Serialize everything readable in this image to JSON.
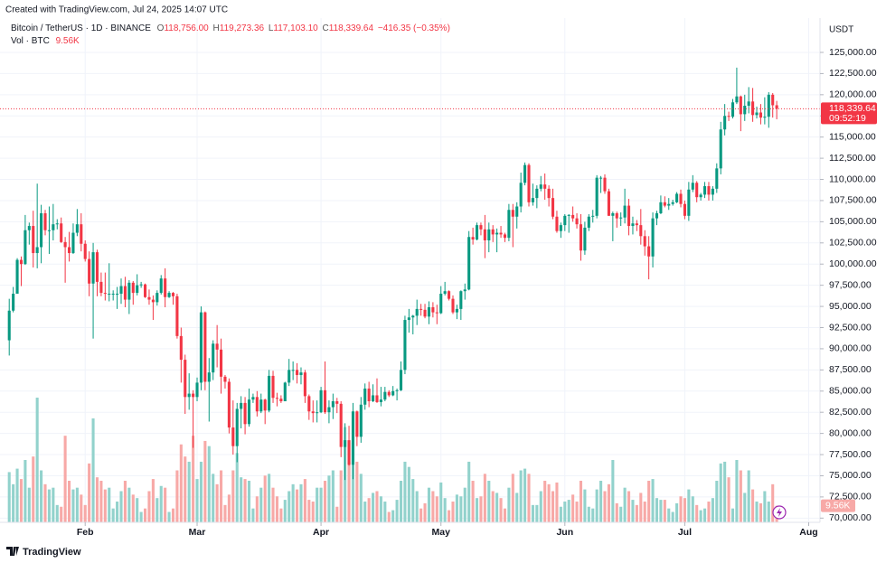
{
  "chart_data": {
    "type": "candlestick",
    "created_note": "Created with TradingView.com, Jul 24, 2025 14:07 UTC",
    "title": "Bitcoin / TetherUS · 1D · BINANCE",
    "ohlc_labels": [
      "O",
      "H",
      "L",
      "C"
    ],
    "ohlc_value_labels": [
      "118,756.00",
      "119,273.36",
      "117,103.10",
      "118,339.64"
    ],
    "change_label": "−416.35 (−0.35%)",
    "volume_title": "Vol · BTC",
    "last_volume_label": "9.56K",
    "currency": "USDT",
    "last_price_label": "118,339.64",
    "countdown": "09:52:19",
    "brand": "TradingView",
    "up_color": "#089981",
    "down_color": "#f23645",
    "up_volume_color": "#92d2cc",
    "down_volume_color": "#f7a9a7",
    "grid": true,
    "xlim": [
      -0.5,
      202.6
    ],
    "xticks": [
      {
        "value": 19,
        "label": "Feb"
      },
      {
        "value": 47,
        "label": "Mar"
      },
      {
        "value": 78,
        "label": "Apr"
      },
      {
        "value": 108,
        "label": "May"
      },
      {
        "value": 139,
        "label": "Jun"
      },
      {
        "value": 169,
        "label": "Jul"
      },
      {
        "value": 200,
        "label": "Aug"
      }
    ],
    "ylim": [
      69500,
      128200
    ],
    "yticks": [
      {
        "value": 70000,
        "label": "70,000.00"
      },
      {
        "value": 72500,
        "label": "72,500.00"
      },
      {
        "value": 75000,
        "label": "75,000.00"
      },
      {
        "value": 77500,
        "label": "77,500.00"
      },
      {
        "value": 80000,
        "label": "80,000.00"
      },
      {
        "value": 82500,
        "label": "82,500.00"
      },
      {
        "value": 85000,
        "label": "85,000.00"
      },
      {
        "value": 87500,
        "label": "87,500.00"
      },
      {
        "value": 90000,
        "label": "90,000.00"
      },
      {
        "value": 92500,
        "label": "92,500.00"
      },
      {
        "value": 95000,
        "label": "95,000.00"
      },
      {
        "value": 97500,
        "label": "97,500.00"
      },
      {
        "value": 100000,
        "label": "100,000.00"
      },
      {
        "value": 102500,
        "label": "102,500.00"
      },
      {
        "value": 105000,
        "label": "105,000.00"
      },
      {
        "value": 107500,
        "label": "107,500.00"
      },
      {
        "value": 110000,
        "label": "110,000.00"
      },
      {
        "value": 112500,
        "label": "112,500.00"
      },
      {
        "value": 115000,
        "label": "115,000.00"
      },
      {
        "value": 117500,
        "label": "117,500.00"
      },
      {
        "value": 120000,
        "label": "120,000.00"
      },
      {
        "value": 122500,
        "label": "122,500.00"
      },
      {
        "value": 125000,
        "label": "125,000.00"
      }
    ],
    "volume_ylim": [
      0,
      287
    ],
    "candles": [
      [
        91000,
        95900,
        89200,
        94500
      ],
      [
        94500,
        97300,
        94300,
        96500
      ],
      [
        96500,
        100700,
        96500,
        100500
      ],
      [
        100500,
        100900,
        97400,
        100000
      ],
      [
        100000,
        105800,
        99900,
        104000
      ],
      [
        104000,
        104900,
        102300,
        104500
      ],
      [
        104500,
        106300,
        99600,
        101300
      ],
      [
        101300,
        109500,
        99500,
        102000
      ],
      [
        102000,
        107000,
        100100,
        106000
      ],
      [
        106000,
        106400,
        103400,
        104000
      ],
      [
        104000,
        106800,
        101200,
        104000
      ],
      [
        104000,
        107100,
        102800,
        104700
      ],
      [
        104700,
        105300,
        104100,
        104800
      ],
      [
        104800,
        105500,
        102500,
        102600
      ],
      [
        102600,
        103200,
        97800,
        102000
      ],
      [
        102000,
        103800,
        100300,
        101300
      ],
      [
        101300,
        104800,
        101200,
        103700
      ],
      [
        103700,
        106500,
        103300,
        104700
      ],
      [
        104700,
        106000,
        101500,
        102400
      ],
      [
        102400,
        102800,
        100300,
        100600
      ],
      [
        100600,
        101500,
        96200,
        97700
      ],
      [
        97700,
        102500,
        91200,
        101400
      ],
      [
        101400,
        101700,
        96200,
        97900
      ],
      [
        97900,
        99000,
        96200,
        96600
      ],
      [
        96600,
        99000,
        95700,
        96500
      ],
      [
        96500,
        100100,
        95600,
        96500
      ],
      [
        96500,
        96900,
        95700,
        96500
      ],
      [
        96500,
        97300,
        94700,
        96500
      ],
      [
        96500,
        98300,
        95300,
        97400
      ],
      [
        97400,
        98500,
        94900,
        95800
      ],
      [
        95800,
        98100,
        94100,
        97800
      ],
      [
        97800,
        98000,
        95200,
        96600
      ],
      [
        96600,
        98800,
        96300,
        97500
      ],
      [
        97500,
        97900,
        97200,
        97600
      ],
      [
        97600,
        97700,
        96000,
        96100
      ],
      [
        96100,
        97000,
        95200,
        95800
      ],
      [
        95800,
        96300,
        93400,
        95500
      ],
      [
        95500,
        96900,
        95100,
        96600
      ],
      [
        96600,
        98700,
        96400,
        98300
      ],
      [
        98300,
        99500,
        94900,
        96100
      ],
      [
        96100,
        96800,
        96000,
        96600
      ],
      [
        96600,
        96700,
        95200,
        96200
      ],
      [
        96200,
        96500,
        91200,
        91500
      ],
      [
        91500,
        92500,
        86000,
        88700
      ],
      [
        88700,
        89300,
        82300,
        84300
      ],
      [
        84300,
        87100,
        82800,
        84700
      ],
      [
        84700,
        85100,
        78300,
        84300
      ],
      [
        84300,
        86600,
        83800,
        86000
      ],
      [
        86000,
        95000,
        85100,
        94300
      ],
      [
        94300,
        94400,
        85100,
        86100
      ],
      [
        86100,
        88900,
        81400,
        87200
      ],
      [
        87200,
        91000,
        86300,
        90600
      ],
      [
        90600,
        92800,
        87800,
        89900
      ],
      [
        89900,
        91200,
        84700,
        86700
      ],
      [
        86700,
        86900,
        85300,
        86100
      ],
      [
        86100,
        86500,
        80000,
        80700
      ],
      [
        80700,
        83900,
        77500,
        78500
      ],
      [
        78500,
        83600,
        76600,
        82900
      ],
      [
        82900,
        84400,
        80600,
        83600
      ],
      [
        83600,
        84300,
        79900,
        81100
      ],
      [
        81100,
        85300,
        80800,
        84000
      ],
      [
        84000,
        84700,
        83600,
        84300
      ],
      [
        84300,
        85000,
        82000,
        82600
      ],
      [
        82600,
        84700,
        82400,
        84000
      ],
      [
        84000,
        84100,
        81100,
        82700
      ],
      [
        82700,
        87500,
        82500,
        86800
      ],
      [
        86800,
        87400,
        83600,
        84200
      ],
      [
        84200,
        84800,
        83200,
        84100
      ],
      [
        84100,
        84500,
        83600,
        83800
      ],
      [
        83800,
        86100,
        83800,
        86000
      ],
      [
        86000,
        88800,
        85600,
        87500
      ],
      [
        87500,
        88500,
        86300,
        87500
      ],
      [
        87500,
        88300,
        85900,
        86900
      ],
      [
        86900,
        87800,
        85800,
        87200
      ],
      [
        87200,
        87500,
        83600,
        84400
      ],
      [
        84400,
        84600,
        81600,
        82600
      ],
      [
        82600,
        83900,
        81300,
        82400
      ],
      [
        82400,
        83900,
        81300,
        82500
      ],
      [
        82500,
        85500,
        82400,
        85100
      ],
      [
        85100,
        88500,
        82300,
        82500
      ],
      [
        82500,
        83900,
        81200,
        83100
      ],
      [
        83100,
        84700,
        81700,
        83800
      ],
      [
        83800,
        84200,
        82400,
        83500
      ],
      [
        83500,
        83800,
        77200,
        78400
      ],
      [
        78400,
        81200,
        74500,
        79200
      ],
      [
        79200,
        80900,
        76200,
        76300
      ],
      [
        76300,
        83600,
        74600,
        82600
      ],
      [
        82600,
        82700,
        78500,
        79600
      ],
      [
        79600,
        84300,
        78900,
        83400
      ],
      [
        83400,
        85900,
        82800,
        85300
      ],
      [
        85300,
        86100,
        83100,
        83800
      ],
      [
        83800,
        85800,
        83700,
        84500
      ],
      [
        84500,
        86500,
        83600,
        83700
      ],
      [
        83700,
        85500,
        83200,
        84000
      ],
      [
        84000,
        85500,
        83800,
        84900
      ],
      [
        84900,
        85100,
        84300,
        84500
      ],
      [
        84500,
        85600,
        84400,
        85000
      ],
      [
        85000,
        85300,
        83900,
        85100
      ],
      [
        85100,
        88500,
        85000,
        87500
      ],
      [
        87500,
        93900,
        87000,
        93400
      ],
      [
        93400,
        94700,
        91900,
        93700
      ],
      [
        93700,
        94000,
        91700,
        93900
      ],
      [
        93900,
        95800,
        92800,
        94700
      ],
      [
        94700,
        95300,
        93900,
        94600
      ],
      [
        94600,
        95300,
        93600,
        93800
      ],
      [
        93800,
        95600,
        92900,
        94900
      ],
      [
        94900,
        95500,
        93700,
        94300
      ],
      [
        94300,
        95200,
        92900,
        94200
      ],
      [
        94200,
        97400,
        94100,
        96500
      ],
      [
        96500,
        97900,
        96300,
        96800
      ],
      [
        96800,
        96900,
        95700,
        95900
      ],
      [
        95900,
        96300,
        94100,
        94300
      ],
      [
        94300,
        95200,
        93500,
        94700
      ],
      [
        94700,
        96900,
        93400,
        96800
      ],
      [
        96800,
        97700,
        95800,
        97000
      ],
      [
        97000,
        103900,
        96900,
        103200
      ],
      [
        103200,
        104300,
        102300,
        102900
      ],
      [
        102900,
        104900,
        102800,
        104600
      ],
      [
        104600,
        104900,
        103400,
        104100
      ],
      [
        104100,
        105800,
        100700,
        102800
      ],
      [
        102800,
        104900,
        101400,
        104100
      ],
      [
        104100,
        104600,
        102600,
        103500
      ],
      [
        103500,
        104200,
        101400,
        103700
      ],
      [
        103700,
        104500,
        103100,
        103500
      ],
      [
        103500,
        103700,
        102600,
        103100
      ],
      [
        103100,
        107100,
        102700,
        106400
      ],
      [
        106400,
        107100,
        102000,
        105600
      ],
      [
        105600,
        107300,
        104200,
        106800
      ],
      [
        106800,
        110800,
        106100,
        109600
      ],
      [
        109600,
        112000,
        109300,
        111700
      ],
      [
        111700,
        111900,
        106800,
        107300
      ],
      [
        107300,
        109500,
        106900,
        107800
      ],
      [
        107800,
        109300,
        106600,
        108900
      ],
      [
        108900,
        110400,
        108600,
        109400
      ],
      [
        109400,
        110700,
        107600,
        108900
      ],
      [
        108900,
        109300,
        106800,
        107800
      ],
      [
        107800,
        108900,
        105300,
        105600
      ],
      [
        105600,
        106300,
        103700,
        103900
      ],
      [
        103900,
        104900,
        103100,
        104600
      ],
      [
        104600,
        105900,
        103900,
        105700
      ],
      [
        105700,
        105900,
        103700,
        105800
      ],
      [
        105800,
        106800,
        105000,
        105400
      ],
      [
        105400,
        106000,
        104200,
        104700
      ],
      [
        104700,
        105900,
        100400,
        101600
      ],
      [
        101600,
        105000,
        101100,
        104300
      ],
      [
        104300,
        105900,
        103900,
        105600
      ],
      [
        105600,
        106400,
        104900,
        105700
      ],
      [
        105700,
        110500,
        105400,
        110200
      ],
      [
        110200,
        110400,
        108400,
        110200
      ],
      [
        110200,
        110600,
        108300,
        108600
      ],
      [
        108600,
        108900,
        105700,
        105700
      ],
      [
        105700,
        106200,
        102700,
        106000
      ],
      [
        106000,
        106200,
        104300,
        105400
      ],
      [
        105400,
        106100,
        104500,
        105500
      ],
      [
        105500,
        108900,
        104800,
        106900
      ],
      [
        106900,
        107700,
        103400,
        104500
      ],
      [
        104500,
        105600,
        103500,
        104800
      ],
      [
        104800,
        105200,
        103900,
        104600
      ],
      [
        104600,
        106500,
        102300,
        103300
      ],
      [
        103300,
        104000,
        101000,
        102100
      ],
      [
        102100,
        103300,
        98200,
        100900
      ],
      [
        100900,
        106100,
        99600,
        105400
      ],
      [
        105400,
        106300,
        104600,
        106000
      ],
      [
        106000,
        108100,
        105900,
        107300
      ],
      [
        107300,
        108000,
        106700,
        106900
      ],
      [
        106900,
        107800,
        106400,
        107100
      ],
      [
        107100,
        107600,
        106900,
        107300
      ],
      [
        107300,
        108500,
        107200,
        108300
      ],
      [
        108300,
        108800,
        106700,
        107100
      ],
      [
        107100,
        107500,
        105300,
        105700
      ],
      [
        105700,
        109700,
        105100,
        108800
      ],
      [
        108800,
        110500,
        108500,
        109600
      ],
      [
        109600,
        109800,
        107300,
        107900
      ],
      [
        107900,
        108400,
        107500,
        108200
      ],
      [
        108200,
        109700,
        107800,
        109200
      ],
      [
        109200,
        109700,
        107500,
        108200
      ],
      [
        108200,
        109200,
        107500,
        108900
      ],
      [
        108900,
        111900,
        108400,
        111300
      ],
      [
        111300,
        116800,
        110600,
        115900
      ],
      [
        115900,
        118900,
        115200,
        117500
      ],
      [
        117500,
        118000,
        116900,
        117400
      ],
      [
        117400,
        119500,
        117200,
        119100
      ],
      [
        119100,
        123200,
        118900,
        119800
      ],
      [
        119800,
        119900,
        115700,
        117700
      ],
      [
        117700,
        120000,
        116900,
        118700
      ],
      [
        118700,
        120900,
        117800,
        119200
      ],
      [
        119200,
        120800,
        116800,
        117600
      ],
      [
        117600,
        118600,
        117200,
        117900
      ],
      [
        117900,
        118900,
        116500,
        117300
      ],
      [
        117300,
        119700,
        116500,
        117400
      ],
      [
        117400,
        120300,
        116100,
        120000
      ],
      [
        120000,
        120200,
        117300,
        118756
      ],
      [
        118756,
        119273.36,
        117103.1,
        118339.64
      ]
    ],
    "volume": [
      29,
      22,
      31,
      25,
      36,
      20,
      38,
      72,
      30,
      22,
      19,
      20,
      10,
      9,
      50,
      24,
      19,
      20,
      16,
      10,
      34,
      60,
      26,
      24,
      19,
      20,
      8,
      12,
      18,
      24,
      20,
      16,
      14,
      6,
      8,
      18,
      25,
      14,
      21,
      20,
      6,
      8,
      30,
      45,
      38,
      35,
      50,
      25,
      35,
      47,
      44,
      28,
      22,
      30,
      10,
      16,
      30,
      40,
      26,
      25,
      24,
      8,
      15,
      20,
      27,
      28,
      20,
      15,
      8,
      13,
      18,
      22,
      19,
      22,
      25,
      13,
      12,
      20,
      20,
      24,
      27,
      30,
      9,
      30,
      55,
      35,
      46,
      35,
      28,
      12,
      14,
      17,
      18,
      15,
      12,
      6,
      7,
      13,
      24,
      35,
      32,
      25,
      18,
      8,
      11,
      20,
      18,
      15,
      23,
      14,
      7,
      12,
      16,
      15,
      20,
      35,
      24,
      14,
      15,
      28,
      24,
      18,
      17,
      14,
      8,
      20,
      28,
      17,
      30,
      31,
      28,
      10,
      10,
      18,
      24,
      22,
      18,
      23,
      9,
      12,
      13,
      16,
      12,
      24,
      19,
      9,
      8,
      19,
      24,
      18,
      22,
      36,
      11,
      9,
      20,
      18,
      13,
      10,
      17,
      12,
      24,
      25,
      14,
      13,
      13,
      8,
      6,
      11,
      15,
      14,
      19,
      15,
      10,
      7,
      8,
      12,
      14,
      24,
      34,
      35,
      26,
      8,
      36,
      30,
      17,
      30,
      19,
      12,
      11,
      18,
      12,
      22,
      9.56
    ]
  }
}
